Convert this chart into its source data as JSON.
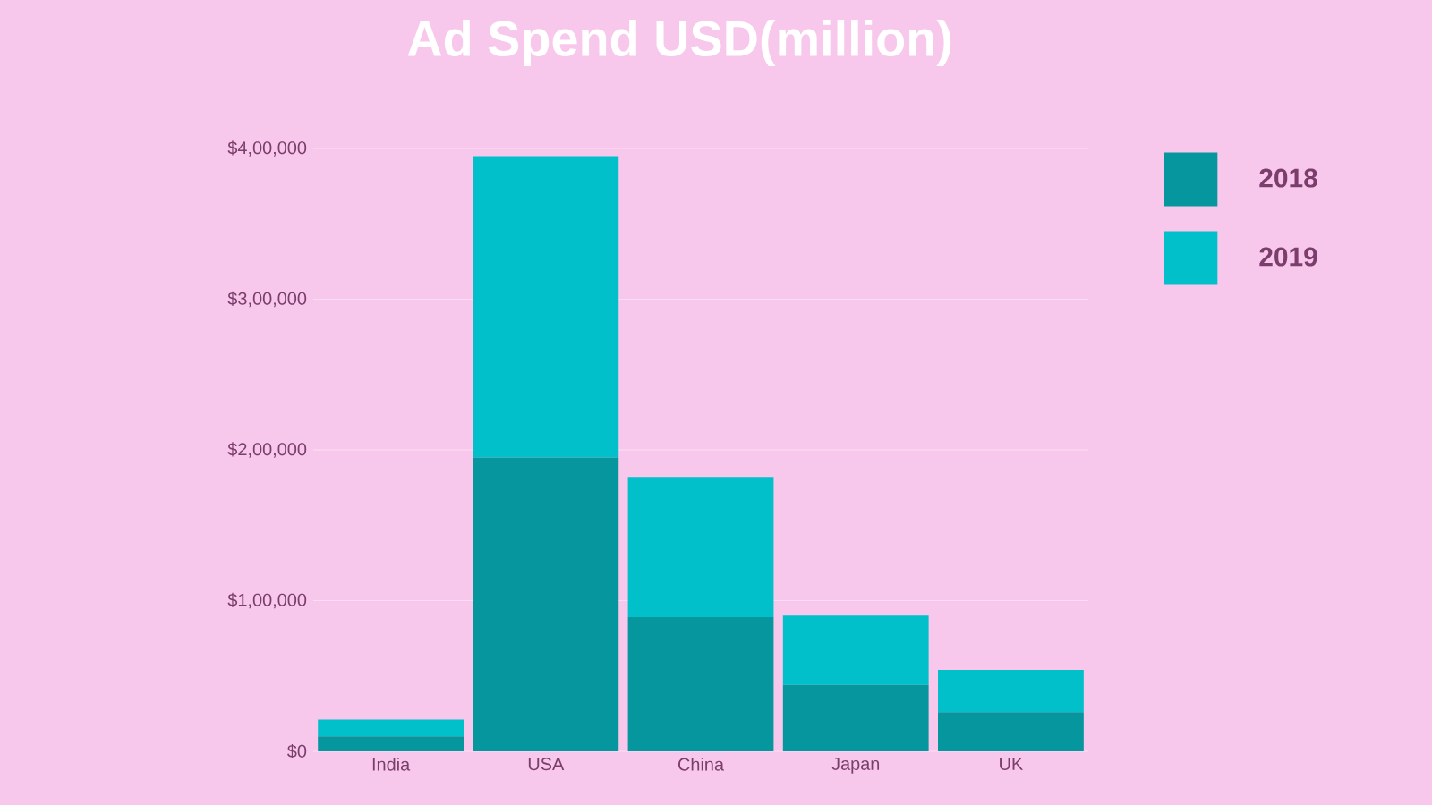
{
  "chart_data": {
    "type": "bar",
    "title": "Ad Spend USD(million)",
    "categories": [
      "India",
      "USA",
      "China",
      "Japan",
      "UK"
    ],
    "stacked": true,
    "series": [
      {
        "name": "2018",
        "color": "#05979d",
        "values": [
          10000,
          195000,
          89000,
          44000,
          26000
        ]
      },
      {
        "name": "2019",
        "color": "#01c0c9",
        "values": [
          11000,
          200000,
          93000,
          46000,
          28000
        ]
      }
    ],
    "ylim": [
      0,
      400000
    ],
    "yticks": [
      {
        "value": 0,
        "label": "$0"
      },
      {
        "value": 100000,
        "label": "$1,00,000"
      },
      {
        "value": 200000,
        "label": "$2,00,000"
      },
      {
        "value": 300000,
        "label": "$3,00,000"
      },
      {
        "value": 400000,
        "label": "$4,00,000"
      }
    ],
    "grid": "y",
    "legend": "top right"
  }
}
